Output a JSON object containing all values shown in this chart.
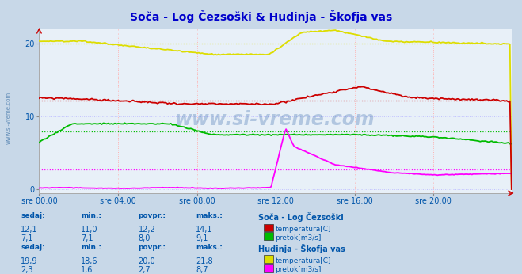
{
  "title": "Soča - Log Čezsoški & Hudinja - Škofja vas",
  "title_color": "#0000cc",
  "bg_color": "#c8d8e8",
  "plot_bg_color": "#e8f0f8",
  "grid_color": "#ffb0b0",
  "grid_color_y": "#c0c0ff",
  "x_ticks": [
    "sre 00:00",
    "sre 04:00",
    "sre 08:00",
    "sre 12:00",
    "sre 16:00",
    "sre 20:00"
  ],
  "x_tick_positions": [
    0,
    96,
    192,
    288,
    384,
    480
  ],
  "x_max": 575,
  "y_ticks": [
    0,
    10,
    20
  ],
  "y_min": -0.5,
  "y_max": 22,
  "watermark": "www.si-vreme.com",
  "watermark_color": "#3366aa",
  "soca_temp_color": "#cc0000",
  "soca_pretok_color": "#00bb00",
  "hudinja_temp_color": "#dddd00",
  "hudinja_pretok_color": "#ff00ff",
  "soca_temp_avg": 12.2,
  "soca_pretok_avg": 8.0,
  "hudinja_temp_avg": 20.0,
  "hudinja_pretok_avg": 2.7,
  "text_color": "#0055aa",
  "soca_label": "Soča - Log Čezsoški",
  "hudinja_label": "Hudinja - Škofja vas",
  "headers": [
    "sedaj:",
    "min.:",
    "povpr.:",
    "maks.:"
  ],
  "soca_temp_vals": [
    "12,1",
    "11,0",
    "12,2",
    "14,1"
  ],
  "soca_pretok_vals": [
    "7,1",
    "7,1",
    "8,0",
    "9,1"
  ],
  "hudinja_temp_vals": [
    "19,9",
    "18,6",
    "20,0",
    "21,8"
  ],
  "hudinja_pretok_vals": [
    "2,3",
    "1,6",
    "2,7",
    "8,7"
  ],
  "temp_label": "temperatura[C]",
  "pretok_label": "pretok[m3/s]"
}
